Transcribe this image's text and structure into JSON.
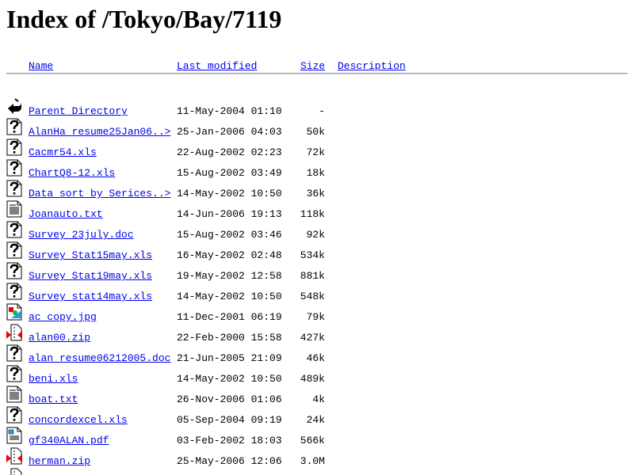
{
  "title": "Index of /Tokyo/Bay/7119",
  "columns": {
    "name": "Name",
    "last_modified": "Last modified",
    "size": "Size",
    "description": "Description"
  },
  "colors": {
    "link": "#0000ee"
  },
  "rows": [
    {
      "icon": "back-icon",
      "name": "Parent Directory",
      "date": "11-May-2004 01:10",
      "size": "-"
    },
    {
      "icon": "unknown-file-icon",
      "name": "AlanHa resume25Jan06..>",
      "date": "25-Jan-2006 04:03",
      "size": "50k"
    },
    {
      "icon": "unknown-file-icon",
      "name": "Cacmr54.xls",
      "date": "22-Aug-2002 02:23",
      "size": "72k"
    },
    {
      "icon": "unknown-file-icon",
      "name": "ChartQ8-12.xls",
      "date": "15-Aug-2002 03:49",
      "size": "18k"
    },
    {
      "icon": "unknown-file-icon",
      "name": "Data sort by Serices..>",
      "date": "14-May-2002 10:50",
      "size": "36k"
    },
    {
      "icon": "text-file-icon",
      "name": "Joanauto.txt",
      "date": "14-Jun-2006 19:13",
      "size": "118k"
    },
    {
      "icon": "unknown-file-icon",
      "name": "Survey 23july.doc",
      "date": "15-Aug-2002 03:46",
      "size": "92k"
    },
    {
      "icon": "unknown-file-icon",
      "name": "Survey Stat15may.xls",
      "date": "16-May-2002 02:48",
      "size": "534k"
    },
    {
      "icon": "unknown-file-icon",
      "name": "Survey Stat19may.xls",
      "date": "19-May-2002 12:58",
      "size": "881k"
    },
    {
      "icon": "unknown-file-icon",
      "name": "Survey stat14may.xls",
      "date": "14-May-2002 10:50",
      "size": "548k"
    },
    {
      "icon": "image-file-icon",
      "name": "ac copy.jpg",
      "date": "11-Dec-2001 06:19",
      "size": "79k"
    },
    {
      "icon": "compressed-file-icon",
      "name": "alan00.zip",
      "date": "22-Feb-2000 15:58",
      "size": "427k"
    },
    {
      "icon": "unknown-file-icon",
      "name": "alan resume06212005.doc",
      "date": "21-Jun-2005 21:09",
      "size": "46k"
    },
    {
      "icon": "unknown-file-icon",
      "name": "beni.xls",
      "date": "14-May-2002 10:50",
      "size": "489k"
    },
    {
      "icon": "text-file-icon",
      "name": "boat.txt",
      "date": "26-Nov-2006 01:06",
      "size": "4k"
    },
    {
      "icon": "unknown-file-icon",
      "name": "concordexcel.xls",
      "date": "05-Sep-2004 09:19",
      "size": "24k"
    },
    {
      "icon": "layout-file-icon",
      "name": "gf340ALAN.pdf",
      "date": "03-Feb-2002 18:03",
      "size": "566k"
    },
    {
      "icon": "compressed-file-icon",
      "name": "herman.zip",
      "date": "25-May-2006 12:06",
      "size": "3.0M"
    },
    {
      "icon": "compressed-file-icon"
    }
  ]
}
